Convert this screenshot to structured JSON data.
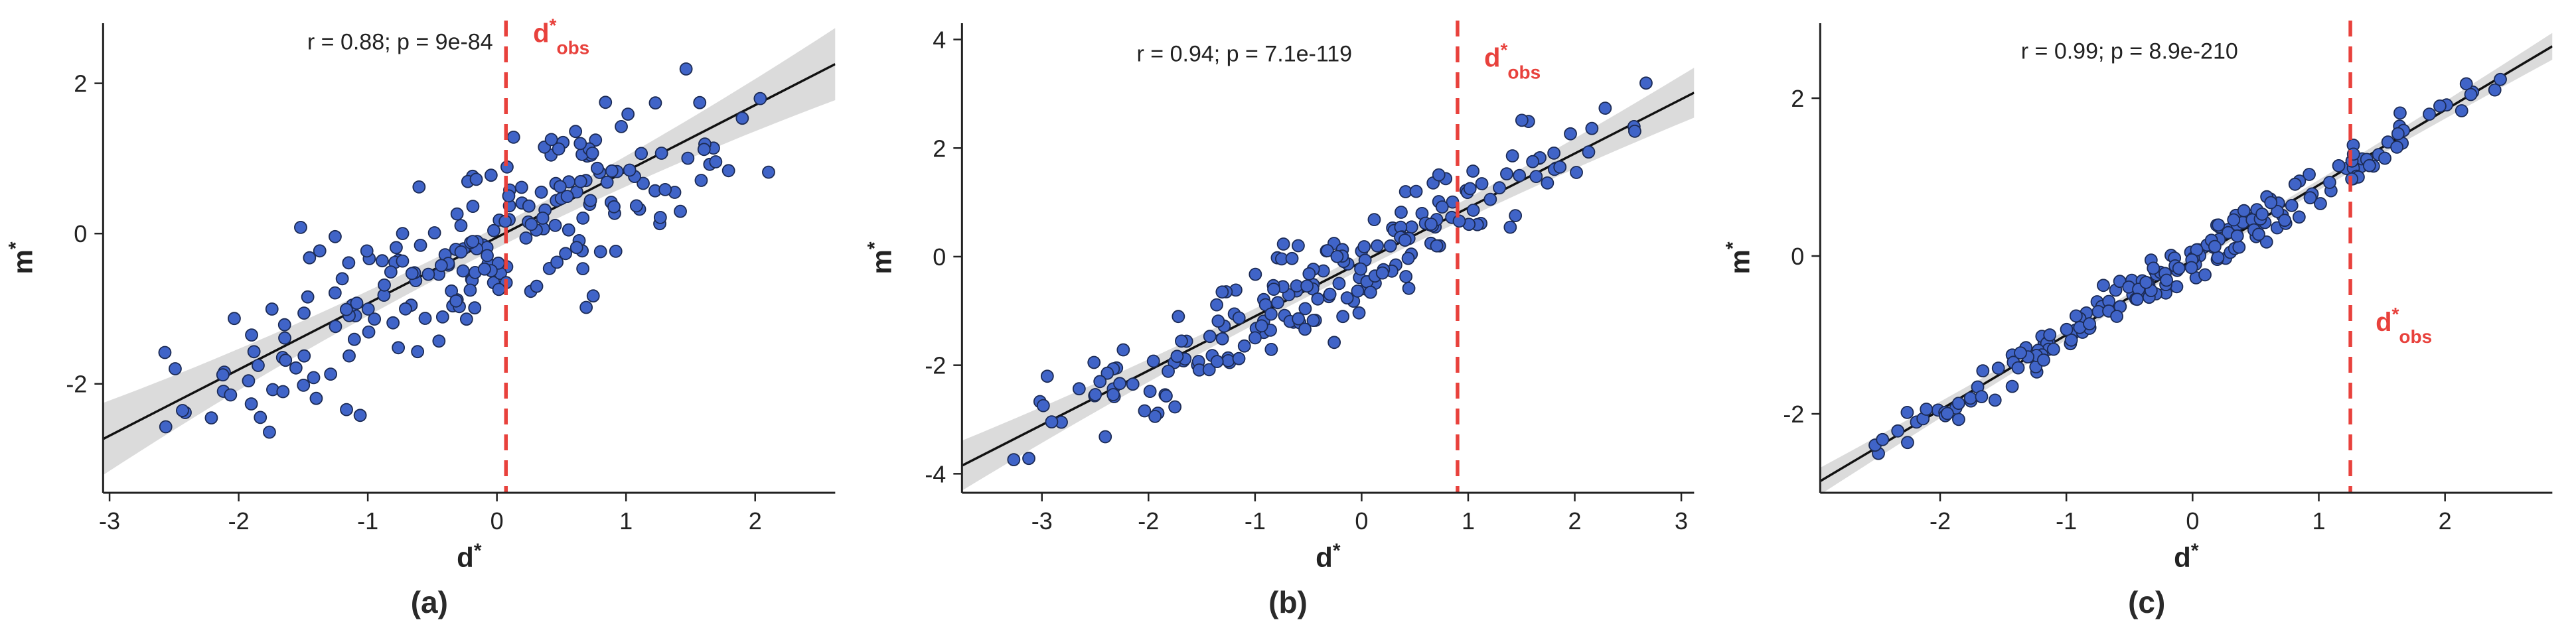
{
  "style": {
    "point_fill": "#4064c8",
    "point_edge": "#1c2b55",
    "line_color": "#111111",
    "band_color": "#c8c8c8",
    "obs_color": "#e8413c",
    "text_color": "#222222"
  },
  "chart_data": [
    {
      "type": "scatter",
      "panel": "(a)",
      "title": "",
      "xlabel": "d*",
      "ylabel": "m*",
      "xlabel_base": "d",
      "xlabel_sup": "*",
      "ylabel_base": "m",
      "ylabel_sup": "*",
      "annotation": "r = 0.88; p = 9e-84",
      "r": 0.88,
      "p": "9e-84",
      "xlim": [
        -3.05,
        2.62
      ],
      "ylim": [
        -3.45,
        2.8
      ],
      "xticks": [
        -3,
        -2,
        -1,
        0,
        1,
        2
      ],
      "yticks": [
        -2,
        0,
        2
      ],
      "obs_line_x": 0.07,
      "obs_label": {
        "base": "d",
        "sup": "*",
        "sub": "obs"
      },
      "obs_label_pos": {
        "x": 0.28,
        "y": 2.55
      },
      "annotation_pos": {
        "x": -0.75,
        "y": 2.45
      },
      "regression": {
        "slope": 0.88,
        "intercept": -0.05
      },
      "ci_halfwidth": {
        "center": 0.14,
        "edge": 0.34
      },
      "points_generator": {
        "n": 220,
        "seed": 42,
        "x_mean": -0.25,
        "x_sd": 1.15,
        "x_min": -2.9,
        "x_max": 2.4,
        "noise_sd": 0.55
      }
    },
    {
      "type": "scatter",
      "panel": "(b)",
      "title": "",
      "xlabel": "d*",
      "ylabel": "m*",
      "xlabel_base": "d",
      "xlabel_sup": "*",
      "ylabel_base": "m",
      "ylabel_sup": "*",
      "annotation": "r = 0.94; p = 7.1e-119",
      "r": 0.94,
      "p": "7.1e-119",
      "xlim": [
        -3.75,
        3.12
      ],
      "ylim": [
        -4.35,
        4.3
      ],
      "xticks": [
        -3,
        -2,
        -1,
        0,
        1,
        2,
        3
      ],
      "yticks": [
        -4,
        -2,
        0,
        2,
        4
      ],
      "obs_line_x": 0.9,
      "obs_label": {
        "base": "d",
        "sup": "*",
        "sub": "obs"
      },
      "obs_label_pos": {
        "x": 1.15,
        "y": 3.5
      },
      "annotation_pos": {
        "x": -1.1,
        "y": 3.6
      },
      "regression": {
        "slope": 1.0,
        "intercept": -0.1
      },
      "ci_halfwidth": {
        "center": 0.13,
        "edge": 0.33
      },
      "points_generator": {
        "n": 200,
        "seed": 7,
        "x_mean": -0.3,
        "x_sd": 1.35,
        "x_min": -3.5,
        "x_max": 2.8,
        "noise_sd": 0.45
      }
    },
    {
      "type": "scatter",
      "panel": "(c)",
      "title": "",
      "xlabel": "d*",
      "ylabel": "m*",
      "xlabel_base": "d",
      "xlabel_sup": "*",
      "ylabel_base": "m",
      "ylabel_sup": "*",
      "annotation": "r = 0.99; p = 8.9e-210",
      "r": 0.99,
      "p": "8.9e-210",
      "xlim": [
        -2.95,
        2.85
      ],
      "ylim": [
        -3.0,
        2.95
      ],
      "xticks": [
        -2,
        -1,
        0,
        1,
        2
      ],
      "yticks": [
        -2,
        0,
        2
      ],
      "obs_line_x": 1.25,
      "obs_label": {
        "base": "d",
        "sup": "*",
        "sub": "obs"
      },
      "obs_label_pos": {
        "x": 1.45,
        "y": -0.95
      },
      "annotation_pos": {
        "x": -0.5,
        "y": 2.5
      },
      "regression": {
        "slope": 0.95,
        "intercept": -0.05
      },
      "ci_halfwidth": {
        "center": 0.05,
        "edge": 0.12
      },
      "points_generator": {
        "n": 200,
        "seed": 13,
        "x_mean": 0.0,
        "x_sd": 1.25,
        "x_min": -2.55,
        "x_max": 2.65,
        "noise_sd": 0.13
      }
    }
  ]
}
